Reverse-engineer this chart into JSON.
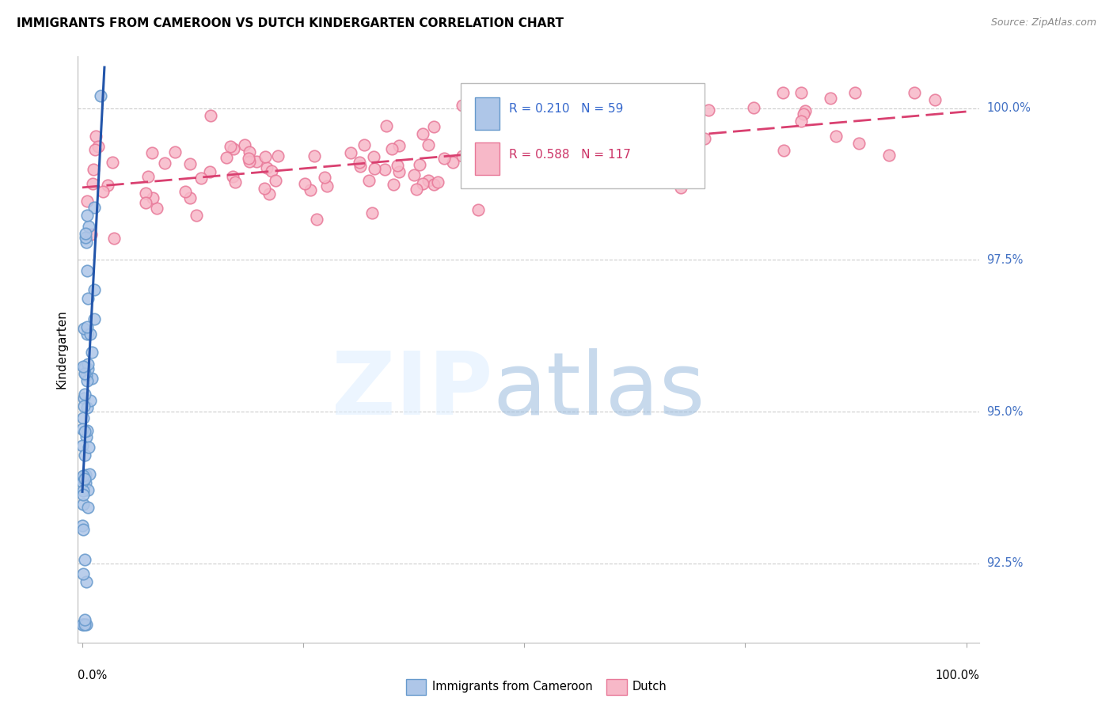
{
  "title": "IMMIGRANTS FROM CAMEROON VS DUTCH KINDERGARTEN CORRELATION CHART",
  "source": "Source: ZipAtlas.com",
  "ylabel": "Kindergarten",
  "yticks": [
    92.5,
    95.0,
    97.5,
    100.0
  ],
  "ytick_labels": [
    "92.5%",
    "95.0%",
    "97.5%",
    "100.0%"
  ],
  "xlim": [
    0.0,
    1.0
  ],
  "ylim": [
    91.2,
    100.85
  ],
  "legend_r_blue": "0.210",
  "legend_n_blue": "59",
  "legend_r_pink": "0.588",
  "legend_n_pink": "117",
  "blue_face_color": "#aec6e8",
  "blue_edge_color": "#6699cc",
  "pink_face_color": "#f7b8c8",
  "pink_edge_color": "#e87898",
  "blue_line_color": "#2255aa",
  "pink_line_color": "#d94070",
  "background_color": "#ffffff",
  "grid_color": "#cccccc"
}
